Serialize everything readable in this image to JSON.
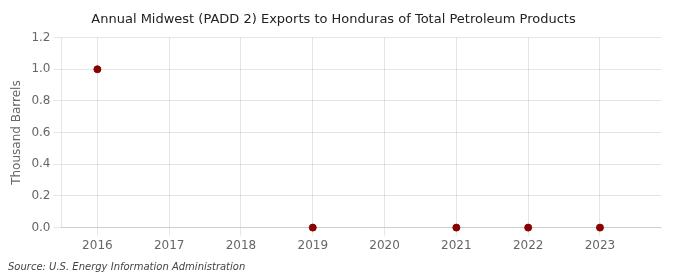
{
  "chart_data": {
    "type": "scatter",
    "title": "Annual Midwest (PADD 2) Exports to Honduras of Total Petroleum Products",
    "y_label": "Thousand Barrels",
    "annotations": [
      "Source: U.S. Energy Information Administration"
    ],
    "x": [
      2016,
      2019,
      2021,
      2022,
      2023
    ],
    "values": [
      1.0,
      0.0,
      0.0,
      0.0,
      0.0
    ],
    "color": "#8b0000",
    "marker": "circle",
    "xlim": [
      2015.5,
      2023.85
    ],
    "xticks": [
      2016,
      2017,
      2018,
      2019,
      2020,
      2021,
      2022,
      2023
    ],
    "ylim": [
      0.0,
      1.2
    ],
    "yticks": [
      {
        "value": 0,
        "label": "0.0"
      },
      0.2,
      0.4,
      0.6,
      0.8,
      {
        "value": 1,
        "label": "1.0"
      },
      1.2
    ],
    "grid": true
  }
}
